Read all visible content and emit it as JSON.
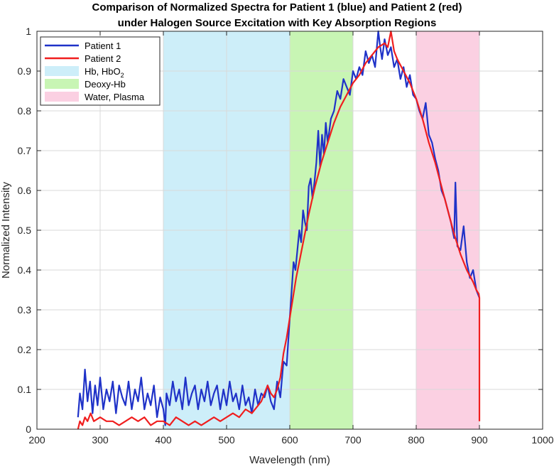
{
  "chart_data": {
    "type": "line",
    "title": "Comparison of Normalized Spectra for Patient 1 (blue) and Patient 2 (red)",
    "subtitle": "under Halogen Source Excitation with Key Absorption Regions",
    "xlabel": "Wavelength (nm)",
    "ylabel": "Normalized Intensity",
    "xlim": [
      200,
      1000
    ],
    "ylim": [
      0,
      1
    ],
    "xticks": [
      200,
      300,
      400,
      500,
      600,
      700,
      800,
      900,
      1000
    ],
    "yticks": [
      0,
      0.1,
      0.2,
      0.3,
      0.4,
      0.5,
      0.6,
      0.7,
      0.8,
      0.9,
      1
    ],
    "ytick_labels": [
      "0",
      "0.1",
      "0.2",
      "0.3",
      "0.4",
      "0.5",
      "0.6",
      "0.7",
      "0.8",
      "0.9",
      "1"
    ],
    "grid": true,
    "legend_position": "top-left",
    "regions": [
      {
        "name": "Hb, HbO2",
        "label_main": "Hb, HbO",
        "label_sub": "2",
        "x_start": 400,
        "x_end": 600,
        "color": "#cdeef9"
      },
      {
        "name": "Deoxy-Hb",
        "label_main": "Deoxy-Hb",
        "label_sub": "",
        "x_start": 600,
        "x_end": 700,
        "color": "#c8f5b4"
      },
      {
        "name": "Water, Plasma",
        "label_main": "Water, Plasma",
        "label_sub": "",
        "x_start": 800,
        "x_end": 900,
        "color": "#fbd0e2"
      }
    ],
    "series": [
      {
        "name": "Patient 1",
        "color": "#1f32c8",
        "x": [
          265,
          268,
          272,
          276,
          280,
          284,
          288,
          292,
          296,
          300,
          305,
          310,
          315,
          320,
          325,
          330,
          335,
          340,
          345,
          350,
          355,
          360,
          365,
          370,
          375,
          380,
          385,
          390,
          395,
          400,
          403,
          405,
          410,
          415,
          420,
          425,
          430,
          435,
          440,
          445,
          450,
          455,
          460,
          465,
          470,
          475,
          480,
          485,
          490,
          495,
          500,
          505,
          510,
          515,
          520,
          525,
          530,
          535,
          540,
          545,
          550,
          555,
          560,
          565,
          570,
          575,
          580,
          585,
          590,
          595,
          600,
          603,
          606,
          609,
          612,
          615,
          618,
          621,
          624,
          627,
          630,
          633,
          636,
          639,
          642,
          645,
          648,
          651,
          654,
          657,
          660,
          665,
          670,
          675,
          680,
          685,
          690,
          695,
          700,
          705,
          710,
          715,
          720,
          725,
          730,
          735,
          740,
          743,
          746,
          750,
          755,
          760,
          765,
          770,
          775,
          780,
          785,
          790,
          795,
          800,
          805,
          810,
          815,
          820,
          825,
          830,
          835,
          840,
          845,
          850,
          855,
          860,
          862,
          865,
          870,
          875,
          880,
          885,
          890,
          895,
          900
        ],
        "y": [
          0.03,
          0.09,
          0.05,
          0.15,
          0.07,
          0.12,
          0.04,
          0.11,
          0.06,
          0.13,
          0.05,
          0.1,
          0.07,
          0.12,
          0.04,
          0.11,
          0.08,
          0.06,
          0.12,
          0.05,
          0.1,
          0.07,
          0.13,
          0.05,
          0.09,
          0.06,
          0.11,
          0.03,
          0.08,
          0.05,
          0.01,
          0.09,
          0.06,
          0.12,
          0.07,
          0.1,
          0.05,
          0.13,
          0.06,
          0.09,
          0.11,
          0.05,
          0.1,
          0.07,
          0.12,
          0.06,
          0.09,
          0.11,
          0.05,
          0.1,
          0.06,
          0.12,
          0.07,
          0.09,
          0.05,
          0.11,
          0.06,
          0.08,
          0.04,
          0.1,
          0.06,
          0.09,
          0.08,
          0.11,
          0.07,
          0.05,
          0.12,
          0.08,
          0.17,
          0.16,
          0.28,
          0.35,
          0.42,
          0.4,
          0.45,
          0.5,
          0.47,
          0.55,
          0.52,
          0.5,
          0.61,
          0.63,
          0.58,
          0.62,
          0.67,
          0.75,
          0.66,
          0.74,
          0.69,
          0.77,
          0.72,
          0.78,
          0.8,
          0.85,
          0.83,
          0.88,
          0.86,
          0.84,
          0.9,
          0.88,
          0.91,
          0.89,
          0.95,
          0.92,
          0.94,
          0.91,
          1.0,
          0.96,
          0.93,
          0.98,
          0.94,
          0.96,
          0.91,
          0.93,
          0.88,
          0.91,
          0.86,
          0.89,
          0.84,
          0.83,
          0.8,
          0.78,
          0.82,
          0.74,
          0.72,
          0.68,
          0.65,
          0.6,
          0.58,
          0.55,
          0.52,
          0.48,
          0.62,
          0.46,
          0.45,
          0.51,
          0.42,
          0.38,
          0.4,
          0.35,
          0.33
        ]
      },
      {
        "name": "Patient 2",
        "color": "#f01e1e",
        "x": [
          265,
          268,
          272,
          276,
          280,
          285,
          290,
          300,
          310,
          320,
          330,
          340,
          350,
          360,
          370,
          380,
          390,
          400,
          410,
          420,
          430,
          440,
          450,
          460,
          470,
          480,
          490,
          500,
          510,
          520,
          530,
          540,
          550,
          555,
          560,
          565,
          570,
          575,
          580,
          585,
          590,
          595,
          600,
          610,
          620,
          630,
          640,
          650,
          660,
          670,
          680,
          690,
          700,
          710,
          720,
          730,
          740,
          750,
          755,
          760,
          765,
          770,
          780,
          790,
          800,
          810,
          820,
          830,
          840,
          850,
          860,
          870,
          880,
          890,
          895,
          899,
          900,
          900
        ],
        "y": [
          0.0,
          0.02,
          0.01,
          0.03,
          0.02,
          0.04,
          0.02,
          0.03,
          0.02,
          0.02,
          0.01,
          0.02,
          0.03,
          0.02,
          0.03,
          0.01,
          0.02,
          0.02,
          0.01,
          0.03,
          0.02,
          0.01,
          0.02,
          0.01,
          0.02,
          0.03,
          0.02,
          0.03,
          0.04,
          0.03,
          0.05,
          0.04,
          0.06,
          0.07,
          0.09,
          0.11,
          0.09,
          0.08,
          0.1,
          0.13,
          0.19,
          0.23,
          0.28,
          0.38,
          0.46,
          0.54,
          0.61,
          0.67,
          0.72,
          0.77,
          0.81,
          0.84,
          0.87,
          0.89,
          0.92,
          0.94,
          0.96,
          0.97,
          0.96,
          1.0,
          0.95,
          0.93,
          0.9,
          0.87,
          0.83,
          0.78,
          0.72,
          0.67,
          0.61,
          0.55,
          0.49,
          0.44,
          0.4,
          0.37,
          0.35,
          0.34,
          0.33,
          0.02
        ]
      }
    ]
  }
}
